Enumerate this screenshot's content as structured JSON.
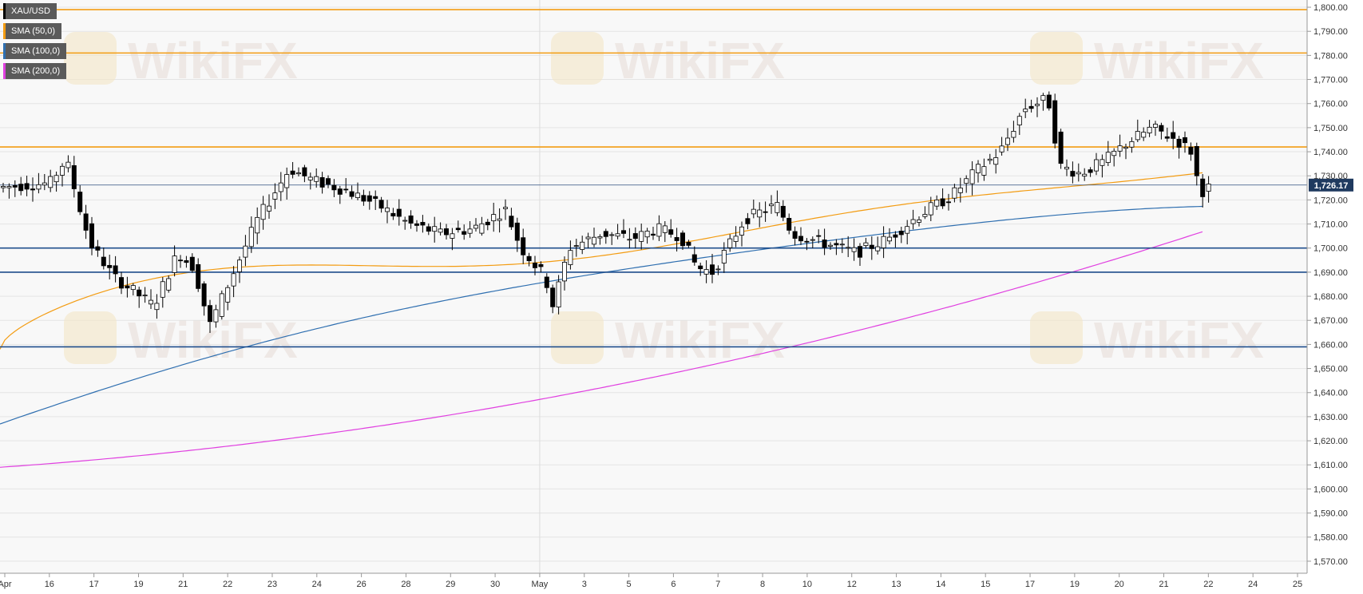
{
  "chart_data": {
    "type": "candlestick",
    "symbol": "XAU/USD",
    "legend": [
      {
        "label": "XAU/USD",
        "color": "#000000"
      },
      {
        "label": "SMA (50,0)",
        "color": "#f39c12"
      },
      {
        "label": "SMA (100,0)",
        "color": "#2f6fb0"
      },
      {
        "label": "SMA (200,0)",
        "color": "#e040e0"
      }
    ],
    "ylim": [
      1565,
      1803
    ],
    "y_ticks": [
      "1,570.00",
      "1,580.00",
      "1,590.00",
      "1,600.00",
      "1,610.00",
      "1,620.00",
      "1,630.00",
      "1,640.00",
      "1,650.00",
      "1,660.00",
      "1,670.00",
      "1,680.00",
      "1,690.00",
      "1,700.00",
      "1,710.00",
      "1,720.00",
      "1,730.00",
      "1,740.00",
      "1,750.00",
      "1,760.00",
      "1,770.00",
      "1,780.00",
      "1,790.00",
      "1,800.00"
    ],
    "x_ticks": [
      "Apr",
      "16",
      "17",
      "19",
      "21",
      "22",
      "23",
      "24",
      "26",
      "28",
      "29",
      "30",
      "May",
      "3",
      "5",
      "6",
      "7",
      "8",
      "10",
      "12",
      "13",
      "14",
      "15",
      "17",
      "19",
      "20",
      "21",
      "22",
      "24",
      "25"
    ],
    "current_price": 1726.17,
    "current_price_label": "1,726.17",
    "horizontal_levels": [
      {
        "value": 1799,
        "color": "#f39c12"
      },
      {
        "value": 1781,
        "color": "#f39c12"
      },
      {
        "value": 1742,
        "color": "#f39c12"
      },
      {
        "value": 1700,
        "color": "#1f4e8c"
      },
      {
        "value": 1690,
        "color": "#1f4e8c"
      },
      {
        "value": 1659,
        "color": "#1f4e8c"
      }
    ],
    "series": [
      {
        "name": "SMA (50,0)",
        "color": "#f39c12",
        "start": 1658,
        "end": 1731
      },
      {
        "name": "SMA (100,0)",
        "color": "#2f6fb0",
        "start": 1627,
        "end": 1716
      },
      {
        "name": "SMA (200,0)",
        "color": "#e040e0",
        "start": 1609,
        "end": 1707
      }
    ],
    "grid": true
  },
  "watermark": "WikiFX"
}
